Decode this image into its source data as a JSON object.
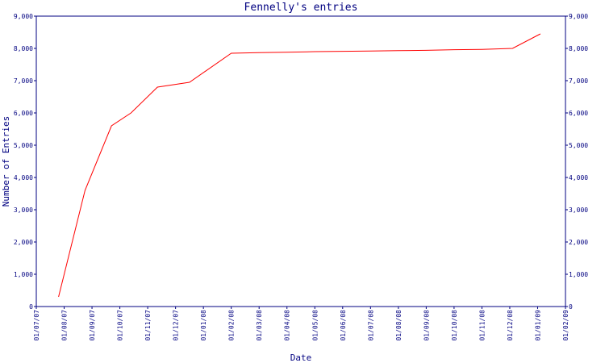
{
  "chart_data": {
    "type": "line",
    "title": "Fennelly's entries",
    "xlabel": "Date",
    "ylabel": "Number of Entries",
    "ylim": [
      0,
      9000
    ],
    "y_ticks": [
      {
        "value": 0,
        "label": "0"
      },
      {
        "value": 1000,
        "label": "1,000"
      },
      {
        "value": 2000,
        "label": "2,000"
      },
      {
        "value": 3000,
        "label": "3,000"
      },
      {
        "value": 4000,
        "label": "4,000"
      },
      {
        "value": 5000,
        "label": "5,000"
      },
      {
        "value": 6000,
        "label": "6,000"
      },
      {
        "value": 7000,
        "label": "7,000"
      },
      {
        "value": 8000,
        "label": "8,000"
      },
      {
        "value": 9000,
        "label": "9,000"
      }
    ],
    "x_ticks": [
      "01/07/07",
      "01/08/07",
      "01/09/07",
      "01/10/07",
      "01/11/07",
      "01/12/07",
      "01/01/08",
      "01/02/08",
      "01/03/08",
      "01/04/08",
      "01/05/08",
      "01/06/08",
      "01/07/08",
      "01/08/08",
      "01/09/08",
      "01/10/08",
      "01/11/08",
      "01/12/08",
      "01/01/09",
      "01/02/09"
    ],
    "grid": false,
    "series": [
      {
        "color": "#ff0000",
        "x": [
          0.8,
          1.75,
          2.7,
          3.4,
          4.35,
          5.5,
          7.0,
          8.0,
          9.0,
          10.0,
          11.0,
          12.0,
          13.0,
          14.0,
          15.0,
          16.0,
          17.1,
          18.1
        ],
        "y": [
          300,
          3600,
          5600,
          6000,
          6800,
          6950,
          7850,
          7870,
          7880,
          7900,
          7910,
          7920,
          7930,
          7940,
          7960,
          7970,
          8000,
          8450
        ]
      }
    ]
  }
}
